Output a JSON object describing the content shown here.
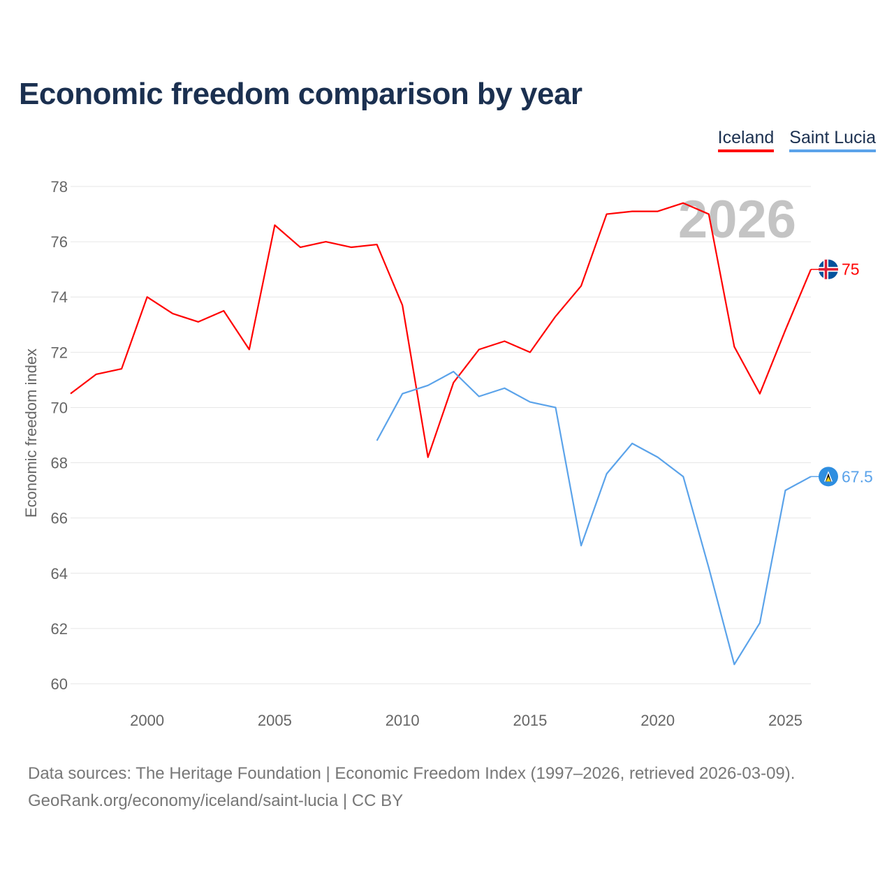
{
  "title": "Economic freedom comparison by year",
  "legend": [
    "Iceland",
    "Saint Lucia"
  ],
  "watermark_year": "2026",
  "source_line1": "Data sources: The Heritage Foundation | Economic Freedom Index (1997–2026, retrieved 2026-03-09).",
  "source_line2": "GeoRank.org/economy/iceland/saint-lucia | CC BY",
  "chart_data": {
    "type": "line",
    "title": "Economic freedom comparison by year",
    "xlabel": "",
    "ylabel": "Economic freedom index",
    "xlim": [
      1997,
      2026
    ],
    "ylim": [
      60,
      78
    ],
    "xticks": [
      2000,
      2005,
      2010,
      2015,
      2020,
      2025
    ],
    "yticks": [
      60,
      62,
      64,
      66,
      68,
      70,
      72,
      74,
      76,
      78
    ],
    "grid": true,
    "legend_position": "top-right",
    "series": [
      {
        "name": "Iceland",
        "color": "#ff0000",
        "end_label": "75",
        "x": [
          1997,
          1998,
          1999,
          2000,
          2001,
          2002,
          2003,
          2004,
          2005,
          2006,
          2007,
          2008,
          2009,
          2010,
          2011,
          2012,
          2013,
          2014,
          2015,
          2016,
          2017,
          2018,
          2019,
          2020,
          2021,
          2022,
          2023,
          2024,
          2025,
          2026
        ],
        "values": [
          70.5,
          71.2,
          71.4,
          74.0,
          73.4,
          73.1,
          73.5,
          72.1,
          76.6,
          75.8,
          76.0,
          75.8,
          75.9,
          73.7,
          68.2,
          70.9,
          72.1,
          72.4,
          72.0,
          73.3,
          74.4,
          77.0,
          77.1,
          77.1,
          77.4,
          77.0,
          72.2,
          70.5,
          72.8,
          75.0
        ]
      },
      {
        "name": "Saint Lucia",
        "color": "#5ba3ea",
        "end_label": "67.5",
        "x": [
          2009,
          2010,
          2011,
          2012,
          2013,
          2014,
          2015,
          2016,
          2017,
          2018,
          2019,
          2020,
          2021,
          2022,
          2023,
          2024,
          2025,
          2026
        ],
        "values": [
          68.8,
          70.5,
          70.8,
          71.3,
          70.4,
          70.7,
          70.2,
          70.0,
          65.0,
          67.6,
          68.7,
          68.2,
          67.5,
          64.2,
          60.7,
          62.2,
          67.0,
          67.5
        ]
      }
    ]
  }
}
